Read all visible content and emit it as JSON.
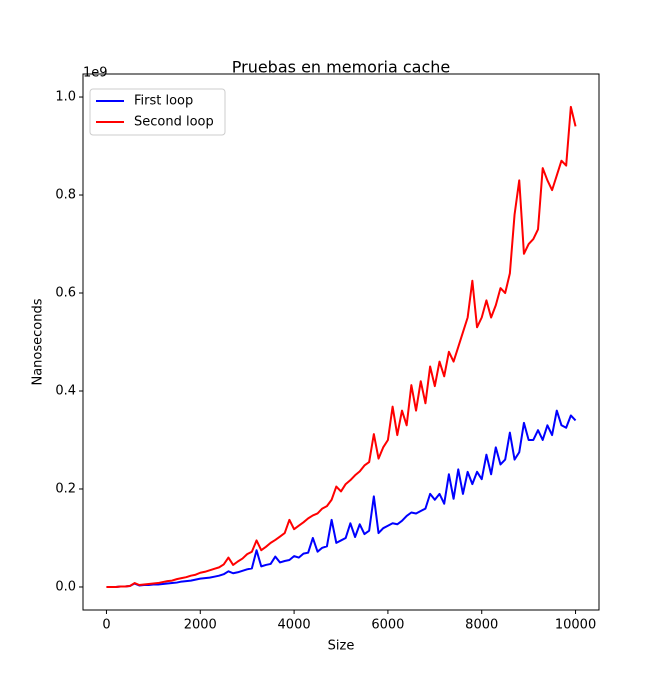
{
  "chart_data": {
    "type": "line",
    "title": "Pruebas en memoria cache",
    "xlabel": "Size",
    "ylabel": "Nanoseconds",
    "y_offset_label": "1e9",
    "x": [
      0,
      100,
      200,
      300,
      400,
      500,
      600,
      700,
      800,
      900,
      1000,
      1100,
      1200,
      1300,
      1400,
      1500,
      1600,
      1700,
      1800,
      1900,
      2000,
      2100,
      2200,
      2300,
      2400,
      2500,
      2600,
      2700,
      2800,
      2900,
      3000,
      3100,
      3200,
      3300,
      3400,
      3500,
      3600,
      3700,
      3800,
      3900,
      4000,
      4100,
      4200,
      4300,
      4400,
      4500,
      4600,
      4700,
      4800,
      4900,
      5000,
      5100,
      5200,
      5300,
      5400,
      5500,
      5600,
      5700,
      5800,
      5900,
      6000,
      6100,
      6200,
      6300,
      6400,
      6500,
      6600,
      6700,
      6800,
      6900,
      7000,
      7100,
      7200,
      7300,
      7400,
      7500,
      7600,
      7700,
      7800,
      7900,
      8000,
      8100,
      8200,
      8300,
      8400,
      8500,
      8600,
      8700,
      8800,
      8900,
      9000,
      9100,
      9200,
      9300,
      9400,
      9500,
      9600,
      9700,
      9800,
      9900,
      10000
    ],
    "series": [
      {
        "name": "First loop",
        "color": "#0000ff",
        "values": [
          0,
          0,
          0,
          0.001,
          0.001,
          0.002,
          0.007,
          0.003,
          0.004,
          0.004,
          0.005,
          0.005,
          0.006,
          0.007,
          0.008,
          0.009,
          0.011,
          0.012,
          0.013,
          0.015,
          0.017,
          0.018,
          0.019,
          0.021,
          0.023,
          0.026,
          0.032,
          0.028,
          0.03,
          0.033,
          0.036,
          0.038,
          0.075,
          0.042,
          0.045,
          0.047,
          0.062,
          0.05,
          0.053,
          0.055,
          0.063,
          0.06,
          0.068,
          0.07,
          0.1,
          0.072,
          0.08,
          0.083,
          0.137,
          0.09,
          0.095,
          0.1,
          0.13,
          0.102,
          0.128,
          0.108,
          0.115,
          0.185,
          0.11,
          0.12,
          0.125,
          0.13,
          0.128,
          0.135,
          0.145,
          0.152,
          0.15,
          0.155,
          0.16,
          0.19,
          0.178,
          0.19,
          0.17,
          0.23,
          0.18,
          0.24,
          0.19,
          0.235,
          0.21,
          0.235,
          0.22,
          0.27,
          0.23,
          0.285,
          0.25,
          0.26,
          0.315,
          0.26,
          0.275,
          0.335,
          0.3,
          0.3,
          0.32,
          0.3,
          0.33,
          0.31,
          0.36,
          0.33,
          0.325,
          0.35,
          0.34
        ]
      },
      {
        "name": "Second loop",
        "color": "#ff0000",
        "values": [
          0,
          0,
          0,
          0.001,
          0.001,
          0.002,
          0.008,
          0.004,
          0.005,
          0.006,
          0.007,
          0.008,
          0.01,
          0.012,
          0.013,
          0.016,
          0.018,
          0.02,
          0.023,
          0.025,
          0.029,
          0.031,
          0.034,
          0.037,
          0.04,
          0.046,
          0.06,
          0.045,
          0.052,
          0.058,
          0.067,
          0.072,
          0.095,
          0.075,
          0.082,
          0.09,
          0.096,
          0.103,
          0.11,
          0.137,
          0.118,
          0.125,
          0.132,
          0.14,
          0.146,
          0.15,
          0.16,
          0.165,
          0.178,
          0.205,
          0.195,
          0.21,
          0.218,
          0.228,
          0.236,
          0.248,
          0.255,
          0.312,
          0.262,
          0.285,
          0.3,
          0.368,
          0.31,
          0.36,
          0.33,
          0.412,
          0.36,
          0.42,
          0.375,
          0.45,
          0.41,
          0.46,
          0.43,
          0.48,
          0.46,
          0.49,
          0.52,
          0.55,
          0.625,
          0.53,
          0.55,
          0.585,
          0.55,
          0.575,
          0.61,
          0.6,
          0.64,
          0.76,
          0.83,
          0.68,
          0.7,
          0.71,
          0.73,
          0.855,
          0.83,
          0.81,
          0.84,
          0.87,
          0.86,
          0.98,
          0.94
        ]
      }
    ],
    "xlim": [
      -500,
      10500
    ],
    "xticks": [
      0,
      2000,
      4000,
      6000,
      8000,
      10000
    ],
    "ylim": [
      -0.047,
      1.047
    ],
    "yticks": [
      {
        "value": 0,
        "label": "0.0"
      },
      0.2,
      0.4,
      0.6,
      0.8,
      {
        "value": 1,
        "label": "1.0"
      }
    ],
    "legend": "upper left",
    "grid": false
  }
}
